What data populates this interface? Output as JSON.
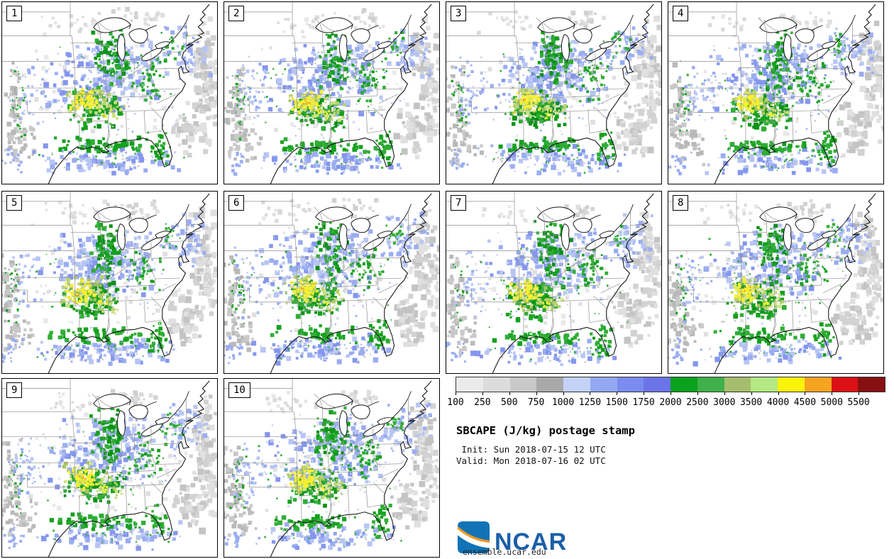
{
  "title": "SBCAPE (J/kg) postage stamp",
  "init_line": " Init: Sun 2018-07-15 12 UTC",
  "valid_line": "Valid: Mon 2018-07-16 02 UTC",
  "panels": [
    {
      "label": "1"
    },
    {
      "label": "2"
    },
    {
      "label": "3"
    },
    {
      "label": "4"
    },
    {
      "label": "5"
    },
    {
      "label": "6"
    },
    {
      "label": "7"
    },
    {
      "label": "8"
    },
    {
      "label": "9"
    },
    {
      "label": "10"
    }
  ],
  "legend": {
    "ticks": [
      "100",
      "250",
      "500",
      "750",
      "1000",
      "1250",
      "1500",
      "1750",
      "2000",
      "2500",
      "3000",
      "3500",
      "4000",
      "4500",
      "5000",
      "5500"
    ],
    "colors": [
      "#ebebeb",
      "#dcdcdc",
      "#c9c9c9",
      "#a9a9a9",
      "#c5d2f8",
      "#93a8f3",
      "#7a8cf0",
      "#6b74e8",
      "#0aa21c",
      "#3fb04a",
      "#a6bd6d",
      "#b4e983",
      "#fbf30a",
      "#f6a41f",
      "#dc1115",
      "#871013"
    ]
  },
  "footer": {
    "logo_text": "NCAR",
    "site": "ensemble.ucar.edu"
  }
}
